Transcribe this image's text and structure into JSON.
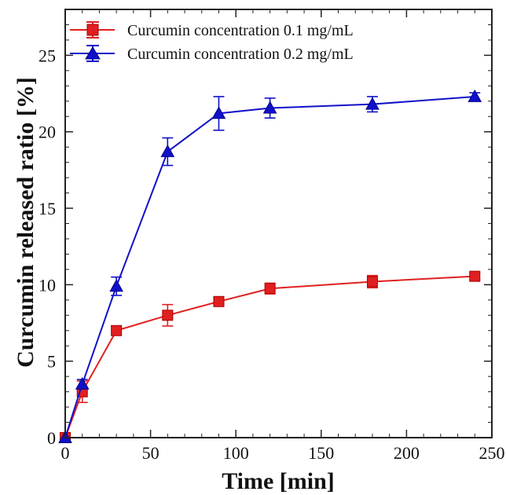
{
  "chart_data": {
    "type": "line",
    "title": "",
    "xlabel": "Time [min]",
    "ylabel": "Curcumin released ratio [%]",
    "xlim": [
      0,
      250
    ],
    "ylim": [
      0,
      28
    ],
    "xticks": [
      0,
      50,
      100,
      150,
      200,
      250
    ],
    "yticks": [
      0,
      5,
      10,
      15,
      20,
      25
    ],
    "grid": false,
    "legend_position": "top-left",
    "series": [
      {
        "name": "Curcumin concentration 0.1 mg/mL",
        "color": "#e02020",
        "marker": "square",
        "x": [
          0,
          10,
          30,
          60,
          90,
          120,
          180,
          240
        ],
        "y": [
          0.0,
          3.0,
          7.0,
          8.0,
          8.9,
          9.75,
          10.2,
          10.55
        ],
        "error": [
          0.0,
          0.7,
          0.3,
          0.7,
          0.2,
          0.35,
          0.4,
          0.2
        ]
      },
      {
        "name": "Curcumin concentration 0.2 mg/mL",
        "color": "#1010c8",
        "marker": "triangle",
        "x": [
          0,
          10,
          30,
          60,
          90,
          120,
          180,
          240
        ],
        "y": [
          0.0,
          3.5,
          9.9,
          18.7,
          21.2,
          21.55,
          21.8,
          22.3
        ],
        "error": [
          0.0,
          0.3,
          0.6,
          0.9,
          1.1,
          0.65,
          0.5,
          0.25
        ]
      }
    ]
  },
  "icons": {
    "square_marker": "square-marker-icon",
    "triangle_marker": "triangle-marker-icon"
  }
}
